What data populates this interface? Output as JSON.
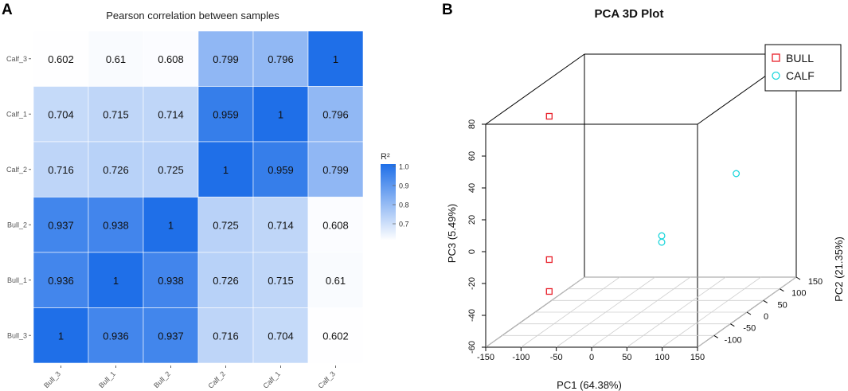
{
  "panels": {
    "a": {
      "label": "A"
    },
    "b": {
      "label": "B"
    }
  },
  "chart_data": [
    {
      "type": "heatmap",
      "title": "Pearson correlation between samples",
      "rows": [
        "Calf_3",
        "Calf_1",
        "Calf_2",
        "Bull_2",
        "Bull_1",
        "Bull_3"
      ],
      "columns": [
        "Bull_3",
        "Bull_1",
        "Bull_2",
        "Calf_2",
        "Calf_1",
        "Calf_3"
      ],
      "values": [
        [
          0.602,
          0.61,
          0.608,
          0.799,
          0.796,
          1
        ],
        [
          0.704,
          0.715,
          0.714,
          0.959,
          1,
          0.796
        ],
        [
          0.716,
          0.726,
          0.725,
          1,
          0.959,
          0.799
        ],
        [
          0.937,
          0.938,
          1,
          0.725,
          0.714,
          0.608
        ],
        [
          0.936,
          1,
          0.938,
          0.726,
          0.715,
          0.61
        ],
        [
          1,
          0.936,
          0.937,
          0.716,
          0.704,
          0.602
        ]
      ],
      "colorbar": {
        "title": "R²",
        "ticks": [
          "1.0",
          "0.9",
          "0.8",
          "0.7"
        ],
        "tick_values": [
          1.0,
          0.9,
          0.8,
          0.7
        ],
        "range": [
          0.6,
          1.0
        ],
        "low_color": "#ffffff",
        "high_color": "#1f6fe8"
      }
    },
    {
      "type": "scatter",
      "title": "PCA 3D Plot",
      "xlabel": "PC1 (64.38%)",
      "ylabel": "PC2 (21.35%)",
      "zlabel": "PC3 (5.49%)",
      "xlim": [
        -150,
        150
      ],
      "ylim": [
        -150,
        150
      ],
      "zlim": [
        -60,
        80
      ],
      "xticks": [
        "-150",
        "-100",
        "-50",
        "0",
        "50",
        "100",
        "150"
      ],
      "xtick_values": [
        -150,
        -100,
        -50,
        0,
        50,
        100,
        150
      ],
      "yticks": [
        "-100",
        "-50",
        "0",
        "50",
        "100",
        "150"
      ],
      "ytick_values": [
        -100,
        -50,
        0,
        50,
        100,
        150
      ],
      "zticks": [
        "-60",
        "-40",
        "-20",
        "0",
        "20",
        "40",
        "60",
        "80"
      ],
      "ztick_values": [
        -60,
        -40,
        -20,
        0,
        20,
        40,
        60,
        80
      ],
      "legend": {
        "position": "top-right"
      },
      "series": [
        {
          "name": "BULL",
          "marker": "square",
          "color": "#e8202a",
          "points": [
            {
              "x": -60,
              "y": -150,
              "z": 85
            },
            {
              "x": -60,
              "y": -150,
              "z": -5
            },
            {
              "x": -60,
              "y": -150,
              "z": -25
            }
          ]
        },
        {
          "name": "CALF",
          "marker": "circle",
          "color": "#1ed6dc",
          "points": [
            {
              "x": 90,
              "y": -130,
              "z": 7
            },
            {
              "x": 90,
              "y": -130,
              "z": 3
            },
            {
              "x": 65,
              "y": 150,
              "z": 5
            }
          ]
        }
      ]
    }
  ]
}
